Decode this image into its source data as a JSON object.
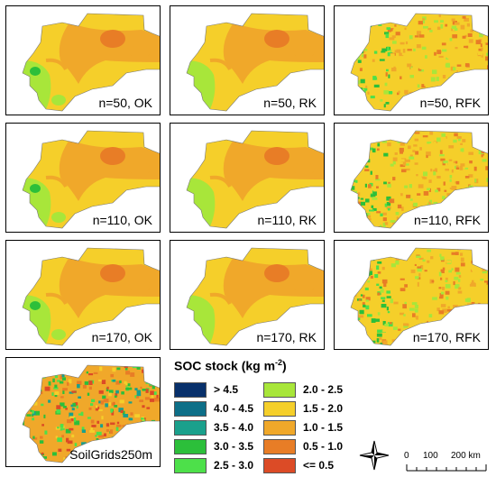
{
  "palette": {
    "gt_4_5": "#08306b",
    "4_0_4_5": "#0d6f88",
    "3_5_4_0": "#1aa08c",
    "3_0_3_5": "#2cbf3a",
    "2_5_3_0": "#4de04a",
    "2_0_2_5": "#a8e63a",
    "1_5_2_0": "#f5cf2a",
    "1_0_1_5": "#f0a82a",
    "0_5_1_0": "#e87d26",
    "le_0_5": "#dc4b26"
  },
  "panels": [
    {
      "label": "n=50, OK",
      "method": "OK"
    },
    {
      "label": "n=50, RK",
      "method": "RK"
    },
    {
      "label": "n=50, RFK",
      "method": "RFK"
    },
    {
      "label": "n=110, OK",
      "method": "OK"
    },
    {
      "label": "n=110, RK",
      "method": "RK"
    },
    {
      "label": "n=110, RFK",
      "method": "RFK"
    },
    {
      "label": "n=170, OK",
      "method": "OK"
    },
    {
      "label": "n=170, RK",
      "method": "RK"
    },
    {
      "label": "n=170, RFK",
      "method": "RFK"
    },
    {
      "label": "SoilGrids250m",
      "method": "SG"
    }
  ],
  "legend": {
    "title": "SOC stock (kg m",
    "title_sup": "-2",
    "title_close": ")",
    "items": [
      {
        "label": "> 4.5",
        "color": "#08306b"
      },
      {
        "label": "4.0 - 4.5",
        "color": "#0d6f88"
      },
      {
        "label": "3.5 - 4.0",
        "color": "#1aa08c"
      },
      {
        "label": "3.0 - 3.5",
        "color": "#2cbf3a"
      },
      {
        "label": "2.5 - 3.0",
        "color": "#4de04a"
      },
      {
        "label": "2.0 - 2.5",
        "color": "#a8e63a"
      },
      {
        "label": "1.5 - 2.0",
        "color": "#f5cf2a"
      },
      {
        "label": "1.0 - 1.5",
        "color": "#f0a82a"
      },
      {
        "label": "0.5 - 1.0",
        "color": "#e87d26"
      },
      {
        "label": "<= 0.5",
        "color": "#dc4b26"
      }
    ]
  },
  "scale": {
    "ticks": [
      "0",
      "100",
      "200 km"
    ]
  },
  "north_arrow": "compass-rose-icon"
}
